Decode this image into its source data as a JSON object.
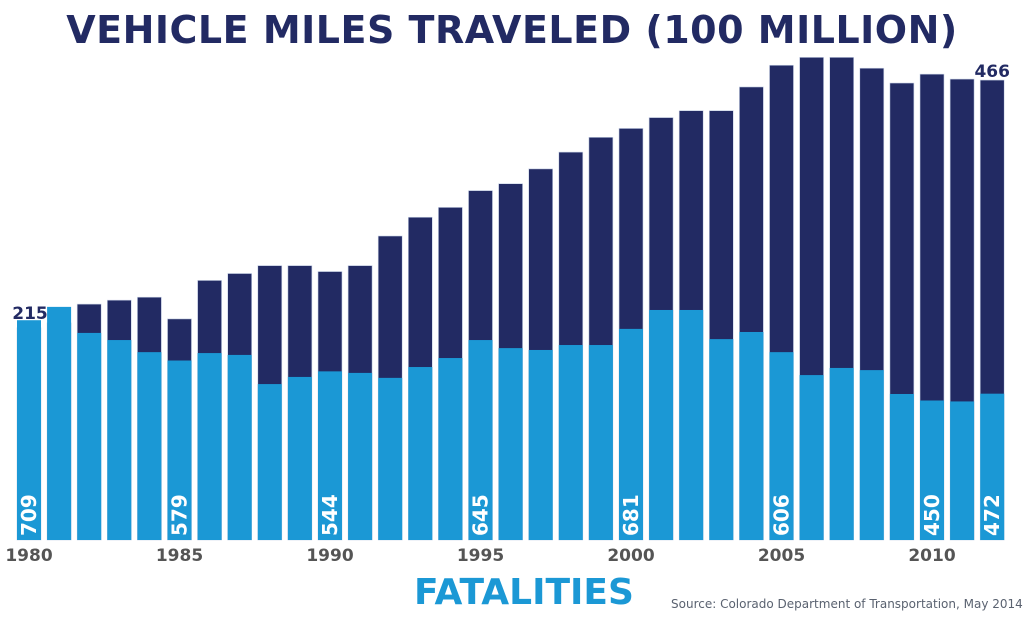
{
  "chart_data": {
    "type": "bar",
    "title": "VEHICLE MILES TRAVELED (100 MILLION)",
    "xlabel": "FATALITIES",
    "source": "Source: Colorado Department of Transportation, May 2014",
    "categories": [
      1980,
      1981,
      1982,
      1983,
      1984,
      1985,
      1986,
      1987,
      1988,
      1989,
      1990,
      1991,
      1992,
      1993,
      1994,
      1995,
      1996,
      1997,
      1998,
      1999,
      2000,
      2001,
      2002,
      2003,
      2004,
      2005,
      2006,
      2007,
      2008,
      2009,
      2010,
      2011,
      2012
    ],
    "x_tick_labels": [
      "1980",
      "1985",
      "1990",
      "1995",
      "2000",
      "2005",
      "2010"
    ],
    "series": [
      {
        "name": "Vehicle Miles Traveled (100 million)",
        "color": "#222a63",
        "values": [
          215,
          220,
          239,
          243,
          246,
          224,
          263,
          270,
          278,
          278,
          272,
          278,
          308,
          327,
          337,
          354,
          361,
          376,
          393,
          408,
          417,
          428,
          435,
          435,
          459,
          481,
          489,
          489,
          478,
          463,
          472,
          467,
          466
        ]
      },
      {
        "name": "Fatalities",
        "color": "#1b98d5",
        "values": [
          709,
          752,
          668,
          645,
          606,
          579,
          603,
          597,
          503,
          526,
          544,
          539,
          523,
          558,
          587,
          645,
          619,
          613,
          629,
          629,
          681,
          742,
          742,
          648,
          671,
          606,
          532,
          555,
          548,
          471,
          450,
          447,
          472
        ]
      }
    ],
    "vmt_labels": [
      {
        "year": 1980,
        "text": "215"
      },
      {
        "year": 2012,
        "text": "466"
      }
    ],
    "fatality_labels": [
      {
        "year": 1980,
        "text": "709"
      },
      {
        "year": 1985,
        "text": "579"
      },
      {
        "year": 1990,
        "text": "544"
      },
      {
        "year": 1995,
        "text": "645"
      },
      {
        "year": 2000,
        "text": "681"
      },
      {
        "year": 2005,
        "text": "606"
      },
      {
        "year": 2010,
        "text": "450"
      },
      {
        "year": 2012,
        "text": "472"
      }
    ]
  }
}
